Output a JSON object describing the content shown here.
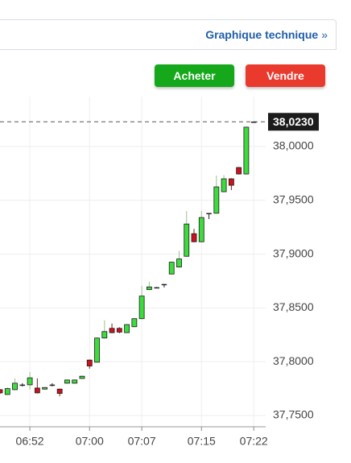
{
  "header": {
    "link": "Graphique technique",
    "chevron": "»"
  },
  "buttons": [
    "Acheter",
    "Vendre"
  ],
  "chart_data": {
    "type": "candlestick",
    "categories": [
      null,
      null,
      null,
      null,
      "06:52",
      null,
      null,
      null,
      null,
      null,
      null,
      null,
      "07:00",
      null,
      null,
      null,
      null,
      null,
      null,
      "07:07",
      null,
      null,
      null,
      null,
      null,
      null,
      null,
      "07:15",
      null,
      null,
      null,
      null,
      null,
      null,
      "07:22"
    ],
    "open": [
      37.774,
      37.7695,
      37.774,
      37.7785,
      37.7785,
      37.7755,
      37.7745,
      37.7785,
      37.7745,
      37.78,
      37.78,
      37.7844,
      37.8015,
      37.7995,
      37.822,
      37.831,
      37.831,
      37.827,
      37.8325,
      37.84,
      37.867,
      37.869,
      37.872,
      37.8815,
      37.888,
      37.898,
      37.919,
      37.9115,
      37.938,
      37.938,
      37.958,
      37.97,
      37.9805,
      37.9745,
      38.023
    ],
    "high": [
      37.7745,
      37.776,
      37.7845,
      37.78,
      37.7905,
      37.7845,
      37.7765,
      37.78,
      37.775,
      37.7835,
      37.7835,
      37.787,
      37.802,
      37.8225,
      37.8385,
      37.8355,
      37.832,
      37.835,
      37.8405,
      37.8705,
      37.8745,
      37.8695,
      37.8722,
      37.893,
      37.903,
      37.94,
      37.9235,
      37.94,
      37.9382,
      37.973,
      37.9735,
      37.9705,
      37.981,
      38.0185,
      38.0232
    ],
    "low": [
      37.77,
      37.769,
      37.7735,
      37.777,
      37.774,
      37.7705,
      37.774,
      37.777,
      37.768,
      37.7795,
      37.7795,
      37.784,
      37.7935,
      37.799,
      37.8215,
      37.8265,
      37.8265,
      37.8265,
      37.832,
      37.8395,
      37.8665,
      37.8685,
      37.869,
      37.881,
      37.8875,
      37.8975,
      37.911,
      37.911,
      37.9326,
      37.9375,
      37.9575,
      37.9595,
      37.974,
      37.974,
      38.0225
    ],
    "close": [
      37.771,
      37.775,
      37.78,
      37.7785,
      37.785,
      37.771,
      37.776,
      37.7785,
      37.7705,
      37.783,
      37.783,
      37.7865,
      37.796,
      37.822,
      37.828,
      37.827,
      37.8275,
      37.8345,
      37.84,
      37.861,
      37.8695,
      37.869,
      37.872,
      37.8925,
      37.8955,
      37.928,
      37.9115,
      37.934,
      37.938,
      37.9625,
      37.97,
      37.964,
      37.9745,
      38.018,
      38.023
    ],
    "up_color": "#3ddc3d",
    "down_color": "#d0101e",
    "flat_color": "#222222",
    "ylim": [
      37.7395,
      38.0464
    ],
    "yticks": [
      {
        "value": 37.75,
        "label": "37,7500"
      },
      {
        "value": 37.8,
        "label": "37,8000"
      },
      {
        "value": 37.85,
        "label": "37,8500"
      },
      {
        "value": 37.9,
        "label": "37,9000"
      },
      {
        "value": 37.95,
        "label": "37,9500"
      },
      {
        "value": 38.0,
        "label": "38,0000"
      }
    ],
    "last_price": {
      "value": 38.023,
      "label": "38,0230"
    },
    "grid": true
  }
}
